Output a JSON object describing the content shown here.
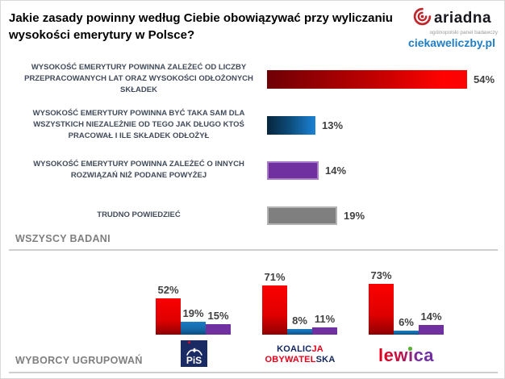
{
  "header": {
    "title": "Jakie zasady powinny według Ciebie obowiązywać przy wyliczaniu wysokości emerytury w Polsce?",
    "logo": {
      "brand": "ariadna",
      "tagline": "ogólnopolski panel badawczy",
      "site": "ciekaweliczby.pl"
    }
  },
  "sections": {
    "all_respondents": "WSZYSCY BADANI",
    "party_voters": "WYBORCY UGRUPOWAŃ"
  },
  "chart_data": [
    {
      "type": "bar",
      "orientation": "horizontal",
      "group": "WSZYSCY BADANI",
      "categories": [
        "WYSOKOŚĆ EMERYTURY POWINNA ZALEŻEĆ OD LICZBY PRZEPRACOWANYCH LAT ORAZ WYSOKOŚCI ODŁOŻONYCH SKŁADEK",
        "WYSOKOŚĆ EMERYTURY POWINNA BYĆ TAKA SAM DLA WSZYSTKICH NIEZALEŻNIE OD TEGO JAK DŁUGO KTOŚ PRACOWAŁ I ILE SKŁADEK ODŁOŻYŁ",
        "WYSOKOŚĆ EMERYTURY POWINNA ZALEŻEĆ O INNYCH ROZWIĄZAŃ NIŻ PODANE POWYŻEJ",
        "TRUDNO POWIEDZIEĆ"
      ],
      "values": [
        54,
        13,
        14,
        19
      ],
      "unit": "%",
      "colors": [
        "#e30000",
        "#1878c8",
        "#7030a0",
        "#7f7f7f"
      ],
      "xlim": [
        0,
        60
      ],
      "grid": false,
      "legend": "none"
    },
    {
      "type": "bar",
      "orientation": "vertical",
      "group": "WYBORCY UGRUPOWAŃ",
      "categories": [
        "PiS",
        "Koalicja Obywatelska",
        "Lewica"
      ],
      "series": [
        {
          "name": "answer_1",
          "color": "#e30000",
          "values": [
            52,
            71,
            73
          ]
        },
        {
          "name": "answer_2",
          "color": "#1878c8",
          "values": [
            19,
            8,
            6
          ]
        },
        {
          "name": "answer_3",
          "color": "#7030a0",
          "values": [
            15,
            11,
            14
          ]
        }
      ],
      "unit": "%",
      "ylim": [
        0,
        80
      ],
      "grid": false,
      "legend": "none"
    }
  ],
  "parties": {
    "pis": {
      "text": "PiS"
    },
    "ko": {
      "line1_navy": "KOALIC",
      "line1_red": "JA",
      "line2_red": "OBYWATEL",
      "line2_navy": "SKA"
    },
    "lewica": {
      "text": "lewica"
    }
  },
  "colors": {
    "accent_red": "#e30000",
    "accent_blue": "#1878c8",
    "accent_purple": "#7030a0",
    "accent_gray": "#7f7f7f",
    "site_blue": "#1f7ec4",
    "label_text": "#414b5a",
    "section_text": "#7f7f7f"
  }
}
